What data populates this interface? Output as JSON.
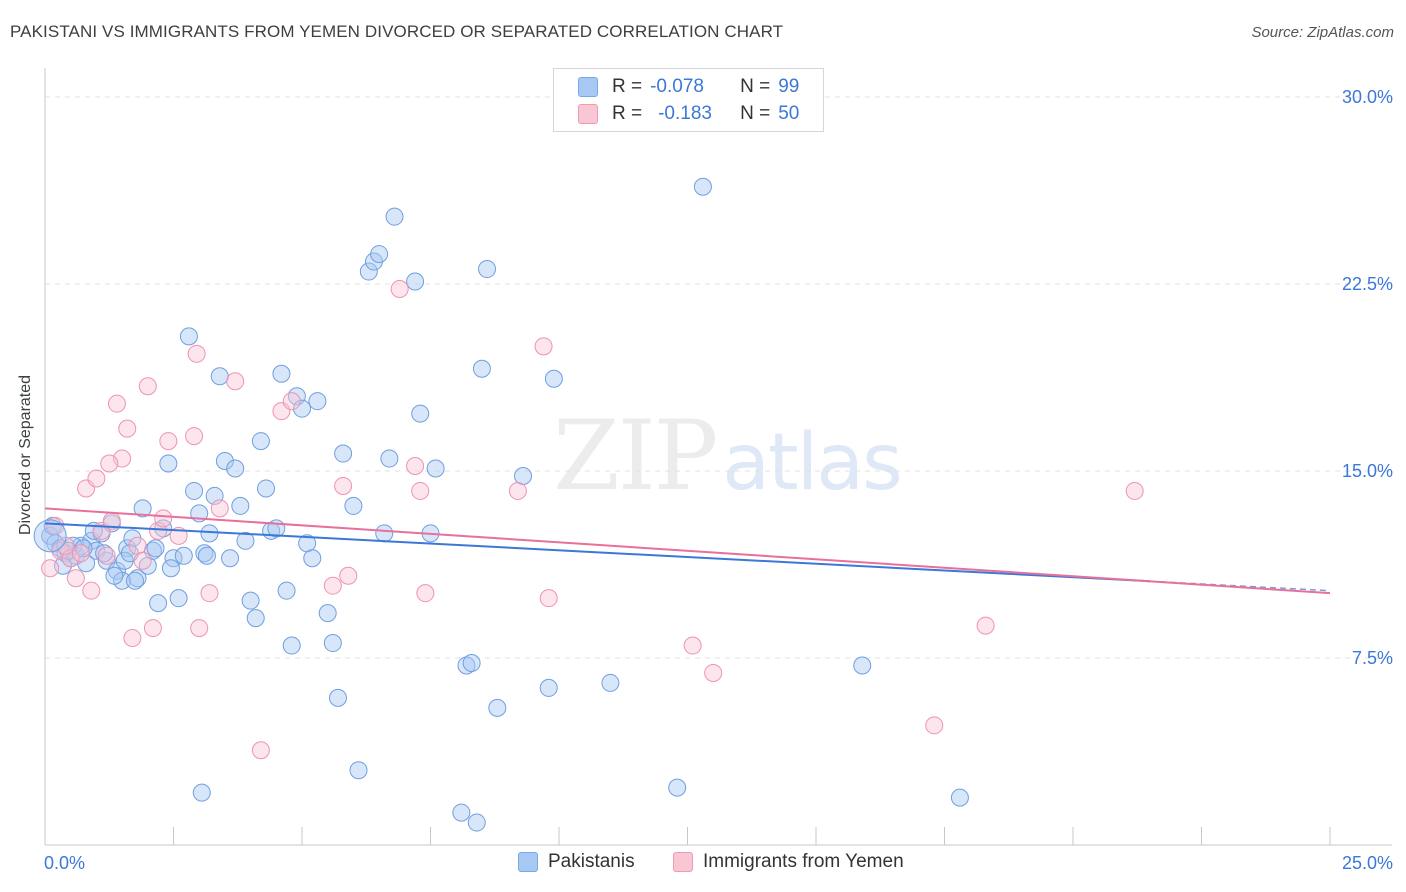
{
  "header": {
    "title": "PAKISTANI VS IMMIGRANTS FROM YEMEN DIVORCED OR SEPARATED CORRELATION CHART",
    "source": "Source: ZipAtlas.com"
  },
  "legend_top": {
    "rows": [
      {
        "r_label": "R =",
        "r_value": "-0.078",
        "n_label": "N =",
        "n_value": "99"
      },
      {
        "r_label": "R =",
        "r_value": "-0.183",
        "n_label": "N =",
        "n_value": "50"
      }
    ]
  },
  "legend_bottom": {
    "items": [
      "Pakistanis",
      "Immigrants from Yemen"
    ]
  },
  "watermark": {
    "zip": "ZIP",
    "atlas": "atlas"
  },
  "colors": {
    "blue": "#3b78d8",
    "blue_fill": "#a8c8f4",
    "pink": "#e8709a",
    "pink_fill": "#f9c6d4",
    "axis_label": "#3b78d8",
    "grid": "#e2e2e2"
  },
  "chart_data": {
    "type": "scatter",
    "title": "PAKISTANI VS IMMIGRANTS FROM YEMEN DIVORCED OR SEPARATED CORRELATION CHART",
    "xlabel": "",
    "ylabel": "Divorced or Separated",
    "xlim": [
      0,
      25
    ],
    "ylim": [
      0,
      30
    ],
    "x_tick_labels": [
      "0.0%",
      "25.0%"
    ],
    "y_ticks": [
      7.5,
      15.0,
      22.5,
      30.0
    ],
    "y_tick_labels": [
      "7.5%",
      "15.0%",
      "22.5%",
      "30.0%"
    ],
    "grid": true,
    "legend_position": "top-center",
    "series": [
      {
        "name": "Pakistanis",
        "color": "#3b78d8",
        "trend": {
          "x": [
            0,
            25
          ],
          "y": [
            12.9,
            10.2
          ]
        },
        "points": [
          [
            0.1,
            12.4
          ],
          [
            0.2,
            12.1
          ],
          [
            0.3,
            11.9
          ],
          [
            0.4,
            11.7
          ],
          [
            0.5,
            11.5
          ],
          [
            0.6,
            11.6
          ],
          [
            0.7,
            12.0
          ],
          [
            0.8,
            11.3
          ],
          [
            0.9,
            12.2
          ],
          [
            1.0,
            11.8
          ],
          [
            1.1,
            12.5
          ],
          [
            1.2,
            11.4
          ],
          [
            1.3,
            12.9
          ],
          [
            1.4,
            11.0
          ],
          [
            1.5,
            10.6
          ],
          [
            1.6,
            11.9
          ],
          [
            1.7,
            12.3
          ],
          [
            1.8,
            10.7
          ],
          [
            1.9,
            13.5
          ],
          [
            2.0,
            11.2
          ],
          [
            2.1,
            11.8
          ],
          [
            2.2,
            9.7
          ],
          [
            2.3,
            12.7
          ],
          [
            2.4,
            15.3
          ],
          [
            2.5,
            11.5
          ],
          [
            2.6,
            9.9
          ],
          [
            2.7,
            11.6
          ],
          [
            2.8,
            20.4
          ],
          [
            2.9,
            14.2
          ],
          [
            3.0,
            13.3
          ],
          [
            3.1,
            11.7
          ],
          [
            3.2,
            12.5
          ],
          [
            3.3,
            14.0
          ],
          [
            3.4,
            18.8
          ],
          [
            3.5,
            15.4
          ],
          [
            3.6,
            11.5
          ],
          [
            3.7,
            15.1
          ],
          [
            3.8,
            13.6
          ],
          [
            3.9,
            12.2
          ],
          [
            4.0,
            9.8
          ],
          [
            4.1,
            9.1
          ],
          [
            4.2,
            16.2
          ],
          [
            4.3,
            14.3
          ],
          [
            4.4,
            12.6
          ],
          [
            4.5,
            12.7
          ],
          [
            4.6,
            18.9
          ],
          [
            4.7,
            10.2
          ],
          [
            4.8,
            8.0
          ],
          [
            4.9,
            18.0
          ],
          [
            5.0,
            17.5
          ],
          [
            5.1,
            12.1
          ],
          [
            5.2,
            11.5
          ],
          [
            5.3,
            17.8
          ],
          [
            5.5,
            9.3
          ],
          [
            5.6,
            8.1
          ],
          [
            5.7,
            5.9
          ],
          [
            5.8,
            15.7
          ],
          [
            6.0,
            13.6
          ],
          [
            6.1,
            3.0
          ],
          [
            6.3,
            23.0
          ],
          [
            6.4,
            23.4
          ],
          [
            6.5,
            23.7
          ],
          [
            6.6,
            12.5
          ],
          [
            6.7,
            15.5
          ],
          [
            6.8,
            25.2
          ],
          [
            7.2,
            22.6
          ],
          [
            7.3,
            17.3
          ],
          [
            7.5,
            12.5
          ],
          [
            7.6,
            15.1
          ],
          [
            8.1,
            1.3
          ],
          [
            8.2,
            7.2
          ],
          [
            8.3,
            7.3
          ],
          [
            8.4,
            0.9
          ],
          [
            8.5,
            19.1
          ],
          [
            8.6,
            23.1
          ],
          [
            8.8,
            5.5
          ],
          [
            9.3,
            14.8
          ],
          [
            9.8,
            6.3
          ],
          [
            9.9,
            18.7
          ],
          [
            11.0,
            6.5
          ],
          [
            12.3,
            2.3
          ],
          [
            12.8,
            26.4
          ],
          [
            15.9,
            7.2
          ],
          [
            17.8,
            1.9
          ],
          [
            0.15,
            12.8
          ],
          [
            0.35,
            11.2
          ],
          [
            0.55,
            12.0
          ],
          [
            0.75,
            11.9
          ],
          [
            0.95,
            12.6
          ],
          [
            1.15,
            11.7
          ],
          [
            1.35,
            10.8
          ],
          [
            1.55,
            11.4
          ],
          [
            1.75,
            10.6
          ],
          [
            2.15,
            11.9
          ],
          [
            3.05,
            2.1
          ],
          [
            3.15,
            11.6
          ],
          [
            2.45,
            11.1
          ],
          [
            1.65,
            11.7
          ],
          [
            0.45,
            11.8
          ]
        ]
      },
      {
        "name": "Immigrants from Yemen",
        "color": "#e8709a",
        "trend": {
          "x": [
            0,
            25
          ],
          "y": [
            13.5,
            10.1
          ]
        },
        "points": [
          [
            0.1,
            11.1
          ],
          [
            0.2,
            12.8
          ],
          [
            0.3,
            11.8
          ],
          [
            0.5,
            11.5
          ],
          [
            0.6,
            10.7
          ],
          [
            0.7,
            11.7
          ],
          [
            0.8,
            14.3
          ],
          [
            0.9,
            10.2
          ],
          [
            1.0,
            14.7
          ],
          [
            1.1,
            12.6
          ],
          [
            1.2,
            11.6
          ],
          [
            1.3,
            13.0
          ],
          [
            1.4,
            17.7
          ],
          [
            1.5,
            15.5
          ],
          [
            1.6,
            16.7
          ],
          [
            1.7,
            8.3
          ],
          [
            1.8,
            12.0
          ],
          [
            1.9,
            11.4
          ],
          [
            2.0,
            18.4
          ],
          [
            2.1,
            8.7
          ],
          [
            2.2,
            12.6
          ],
          [
            2.3,
            13.1
          ],
          [
            2.4,
            16.2
          ],
          [
            2.9,
            16.4
          ],
          [
            2.95,
            19.7
          ],
          [
            3.0,
            8.7
          ],
          [
            3.2,
            10.1
          ],
          [
            3.4,
            13.5
          ],
          [
            3.7,
            18.6
          ],
          [
            4.2,
            3.8
          ],
          [
            4.6,
            17.4
          ],
          [
            4.8,
            17.8
          ],
          [
            5.6,
            10.4
          ],
          [
            5.8,
            14.4
          ],
          [
            5.9,
            10.8
          ],
          [
            6.9,
            22.3
          ],
          [
            7.2,
            15.2
          ],
          [
            7.3,
            14.2
          ],
          [
            7.4,
            10.1
          ],
          [
            9.2,
            14.2
          ],
          [
            9.7,
            20.0
          ],
          [
            9.8,
            9.9
          ],
          [
            12.6,
            8.0
          ],
          [
            13.0,
            6.9
          ],
          [
            17.3,
            4.8
          ],
          [
            18.3,
            8.8
          ],
          [
            21.2,
            14.2
          ],
          [
            0.4,
            12.0
          ],
          [
            1.25,
            15.3
          ],
          [
            2.6,
            12.4
          ]
        ]
      }
    ]
  }
}
